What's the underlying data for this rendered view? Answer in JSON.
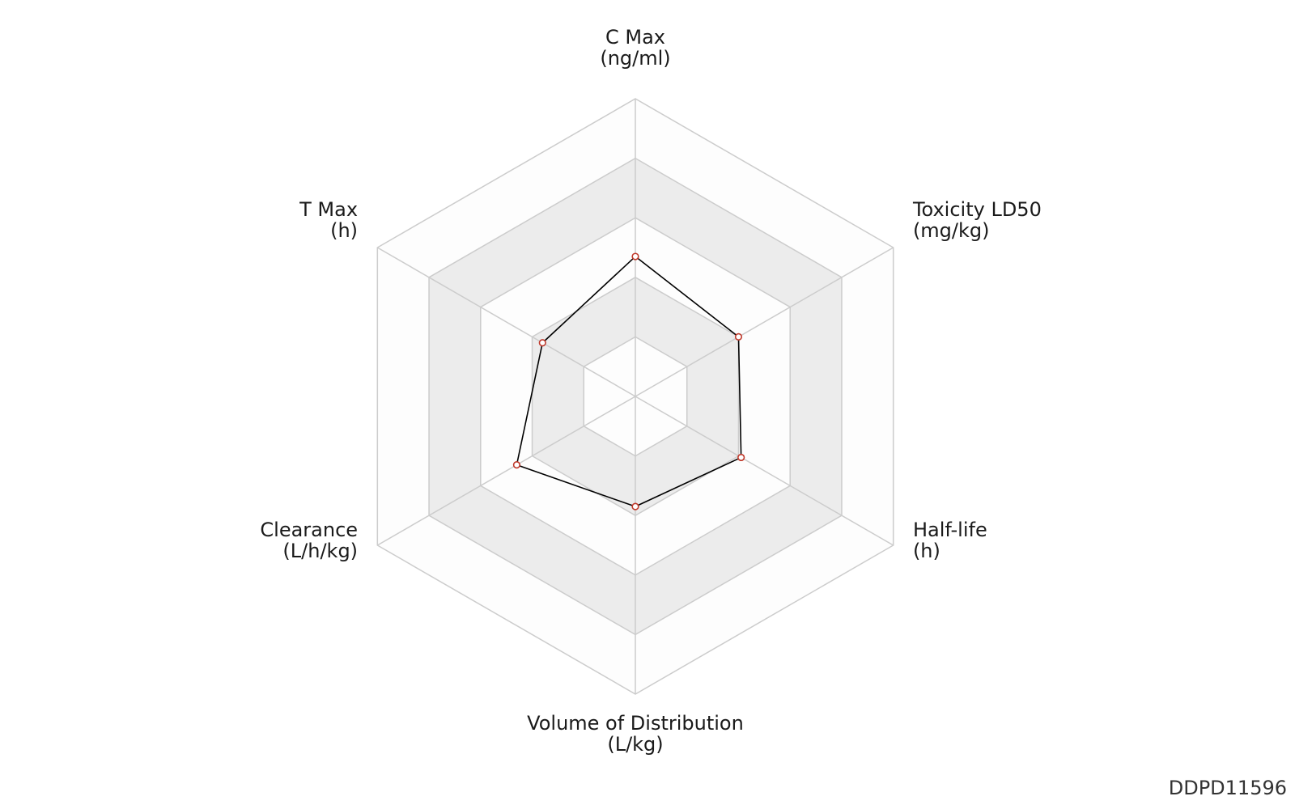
{
  "chart_data": {
    "type": "radar",
    "levels": 5,
    "axes": [
      {
        "name": "C Max",
        "unit": "(ng/ml)"
      },
      {
        "name": "Toxicity LD50",
        "unit": "(mg/kg)"
      },
      {
        "name": "Half-life",
        "unit": "(h)"
      },
      {
        "name": "Volume of Distribution",
        "unit": "(L/kg)"
      },
      {
        "name": "Clearance",
        "unit": "(L/h/kg)"
      },
      {
        "name": "T Max",
        "unit": "(h)"
      }
    ],
    "values": [
      0.47,
      0.4,
      0.41,
      0.37,
      0.46,
      0.36
    ],
    "range": [
      0,
      1
    ],
    "grid": true,
    "colors": {
      "band_light": "#fdfdfd",
      "band_dark": "#ececec",
      "grid_line": "#cccccc",
      "series_line": "#000000",
      "marker_stroke": "#c0392b",
      "marker_fill": "#ffffff"
    }
  },
  "watermark": "DDPD11596"
}
